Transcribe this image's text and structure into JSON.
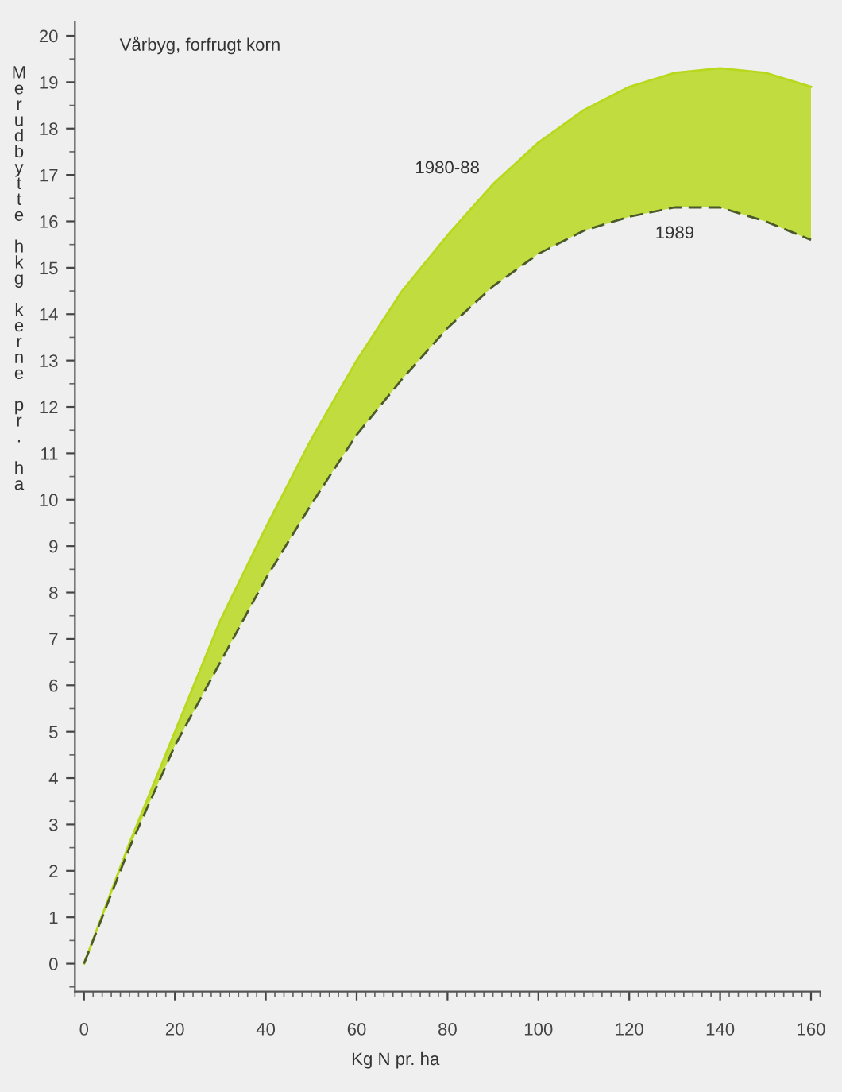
{
  "chart_data": {
    "type": "line",
    "title": "Vårbyg, forfrugt korn",
    "xlabel": "Kg N pr. ha",
    "ylabel": "Merudbytte hkg kerne pr. ha",
    "x": [
      0,
      10,
      20,
      30,
      40,
      50,
      60,
      70,
      80,
      90,
      100,
      110,
      120,
      130,
      140,
      150,
      160
    ],
    "series": [
      {
        "name": "1980-88",
        "color": "#b8d81e",
        "line_style": "solid",
        "values": [
          0,
          2.6,
          5.0,
          7.4,
          9.4,
          11.3,
          13.0,
          14.5,
          15.7,
          16.8,
          17.7,
          18.4,
          18.9,
          19.2,
          19.3,
          19.2,
          18.9
        ],
        "lower": [
          0,
          2.5,
          4.7,
          6.5,
          8.3,
          9.9,
          11.4,
          12.6,
          13.7,
          14.6,
          15.3,
          15.8,
          16.1,
          16.3,
          16.3,
          16.0,
          15.6
        ],
        "upper": [
          0,
          2.6,
          5.0,
          7.4,
          9.4,
          11.3,
          13.0,
          14.5,
          15.7,
          16.8,
          17.7,
          18.4,
          18.9,
          19.2,
          19.3,
          19.2,
          18.9
        ]
      },
      {
        "name": "1989",
        "color": "#4a5a2a",
        "line_style": "dashed",
        "values": [
          0,
          2.5,
          4.7,
          6.5,
          8.3,
          9.9,
          11.4,
          12.6,
          13.7,
          14.6,
          15.3,
          15.8,
          16.1,
          16.3,
          16.3,
          16.0,
          15.6
        ]
      }
    ],
    "xlim": [
      -2,
      162
    ],
    "ylim": [
      -0.6,
      20.3
    ],
    "xticks": [
      0,
      20,
      40,
      60,
      80,
      100,
      120,
      140,
      160
    ],
    "yticks": [
      0,
      1,
      2,
      3,
      4,
      5,
      6,
      7,
      8,
      9,
      10,
      11,
      12,
      13,
      14,
      15,
      16,
      17,
      18,
      19,
      20
    ],
    "grid": false,
    "legend": false,
    "marker": "none"
  }
}
